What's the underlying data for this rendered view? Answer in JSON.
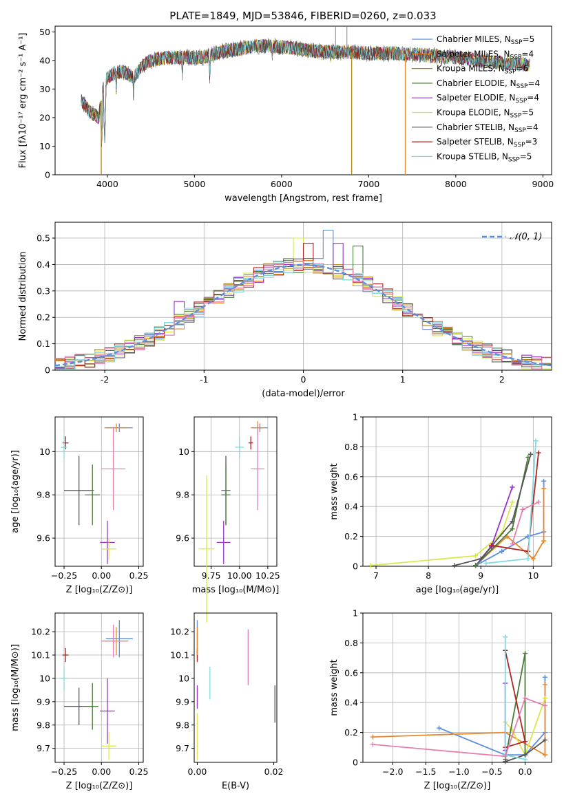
{
  "figure": {
    "title": "PLATE=1849, MJD=53846, FIBERID=0260, z=0.033"
  },
  "colors": {
    "Chabrier MILES": "#5b8ede",
    "Salpeter MILES": "#e8862a",
    "Kroupa MILES": "#b8860b",
    "Chabrier ELODIE": "#4a7a3a",
    "Salpeter ELODIE": "#9932cc",
    "Kroupa ELODIE": "#d8e84a",
    "Chabrier STELIB": "#555555",
    "Salpeter STELIB": "#b22222",
    "Kroupa STELIB": "#7fdbe0",
    "Pink": "#e57fb0"
  },
  "chart_data": [
    {
      "id": "spectrum",
      "type": "line",
      "xlabel": "wavelength [Angstrom, rest frame]",
      "ylabel": "Flux [fλ10⁻¹⁷ erg cm⁻² s⁻¹ A⁻¹]",
      "xlim": [
        3400,
        9100
      ],
      "ylim": [
        0,
        52
      ],
      "xticks": [
        4000,
        5000,
        6000,
        7000,
        8000,
        9000
      ],
      "yticks": [
        0,
        10,
        20,
        30,
        40,
        50
      ],
      "legend_position": "top-right",
      "legend": [
        {
          "label": "Chabrier MILES, N",
          "sub": "SSP",
          "eq": "=5",
          "color_key": "Chabrier MILES"
        },
        {
          "label": "Salpeter MILES, N",
          "sub": "SSP",
          "eq": "=4",
          "color_key": "Salpeter MILES"
        },
        {
          "label": "Kroupa MILES, N",
          "sub": "SSP",
          "eq": "=6",
          "color_key": "Kroupa MILES"
        },
        {
          "label": "Chabrier ELODIE, N",
          "sub": "SSP",
          "eq": "=4",
          "color_key": "Chabrier ELODIE"
        },
        {
          "label": "Salpeter ELODIE, N",
          "sub": "SSP",
          "eq": "=4",
          "color_key": "Salpeter ELODIE"
        },
        {
          "label": "Kroupa ELODIE, N",
          "sub": "SSP",
          "eq": "=5",
          "color_key": "Kroupa ELODIE"
        },
        {
          "label": "Chabrier STELIB, N",
          "sub": "SSP",
          "eq": "=4",
          "color_key": "Chabrier STELIB"
        },
        {
          "label": "Salpeter STELIB, N",
          "sub": "SSP",
          "eq": "=3",
          "color_key": "Salpeter STELIB"
        },
        {
          "label": "Kroupa STELIB, N",
          "sub": "SSP",
          "eq": "=5",
          "color_key": "Kroupa STELIB"
        }
      ],
      "continuum": [
        [
          3700,
          26
        ],
        [
          3800,
          22
        ],
        [
          3900,
          20
        ],
        [
          3950,
          30
        ],
        [
          4000,
          34
        ],
        [
          4100,
          36
        ],
        [
          4200,
          36
        ],
        [
          4300,
          34
        ],
        [
          4400,
          38
        ],
        [
          4500,
          40
        ],
        [
          4700,
          41
        ],
        [
          4900,
          41
        ],
        [
          5100,
          41
        ],
        [
          5300,
          43
        ],
        [
          5500,
          44
        ],
        [
          5700,
          45
        ],
        [
          5900,
          45
        ],
        [
          6100,
          44.5
        ],
        [
          6300,
          43.5
        ],
        [
          6500,
          43
        ],
        [
          6700,
          43
        ],
        [
          7000,
          42.5
        ],
        [
          7300,
          42.5
        ],
        [
          7600,
          42
        ],
        [
          8000,
          41
        ],
        [
          8300,
          40
        ],
        [
          8600,
          39
        ],
        [
          8900,
          38.5
        ]
      ],
      "dips": [
        {
          "x": 3934,
          "min": 9
        },
        {
          "x": 3969,
          "min": 10
        },
        {
          "x": 4102,
          "min": 28
        },
        {
          "x": 4300,
          "min": 26
        },
        {
          "x": 4861,
          "min": 32
        },
        {
          "x": 5175,
          "min": 32
        },
        {
          "x": 5893,
          "min": 38
        },
        {
          "x": 6563,
          "min": 38
        }
      ],
      "spikes": [
        {
          "x": 6620,
          "max": 52
        },
        {
          "x": 6750,
          "max": 52
        }
      ],
      "dropouts": [
        {
          "x": 3930,
          "color_key": "Kroupa MILES"
        },
        {
          "x": 6805,
          "color_key": "Kroupa MILES"
        },
        {
          "x": 7420,
          "color_key": "Salpeter MILES"
        }
      ],
      "model_ends": {
        "Kroupa STELIB": 8850,
        "Chabrier STELIB": 8850,
        "Salpeter STELIB": 8850,
        "Chabrier MILES": 7400,
        "Salpeter MILES": 7400,
        "Kroupa MILES": 7400
      }
    },
    {
      "id": "residuals",
      "type": "histogram",
      "xlabel": "(data-model)/error",
      "ylabel": "Normed distribution",
      "xlim": [
        -2.5,
        2.5
      ],
      "ylim": [
        0,
        0.56
      ],
      "xticks": [
        -2,
        -1,
        0,
        1,
        2
      ],
      "yticks": [
        0.0,
        0.1,
        0.2,
        0.3,
        0.4,
        0.5
      ],
      "grid": true,
      "bin_width": 0.1,
      "legend_position": "top-right",
      "legend": [
        {
          "label": "𝒩(0, 1)",
          "style": "dashed",
          "color_key": "Chabrier MILES"
        }
      ],
      "gaussian": {
        "mean": 0,
        "sigma": 1
      },
      "outliers": [
        {
          "color_key": "Chabrier MILES",
          "x": 0.25,
          "y": 0.53
        },
        {
          "color_key": "Kroupa ELODIE",
          "x": -0.05,
          "y": 0.5
        },
        {
          "color_key": "Chabrier ELODIE",
          "x": 0.55,
          "y": 0.47
        },
        {
          "color_key": "Salpeter STELIB",
          "x": 0.05,
          "y": 0.48
        },
        {
          "color_key": "Salpeter ELODIE",
          "x": -1.25,
          "y": 0.26
        },
        {
          "color_key": "Salpeter ELODIE",
          "x": 0.35,
          "y": 0.48
        }
      ]
    },
    {
      "id": "age_vs_Z",
      "type": "errorbar",
      "xlabel": "Z [log₁₀(Z/Z⊙)]",
      "ylabel": "age  [log₁₀(age/yr)]",
      "xlim": [
        -0.31,
        0.28
      ],
      "ylim": [
        9.47,
        10.16
      ],
      "xticks": [
        -0.25,
        0.0,
        0.25
      ],
      "xticklabels": [
        "−0.25",
        "0.00",
        "0.25"
      ],
      "yticks": [
        9.6,
        9.8,
        10.0
      ],
      "grid": true,
      "points": [
        {
          "color_key": "Chabrier MILES",
          "x": 0.12,
          "y": 10.11,
          "xerr": 0.09,
          "yerr": 0.02
        },
        {
          "color_key": "Salpeter MILES",
          "x": 0.1,
          "y": 10.11,
          "xerr": 0.08,
          "yerr": 0.02
        },
        {
          "color_key": "Salpeter STELIB",
          "x": -0.24,
          "y": 10.04,
          "xerr": 0.02,
          "yerr": 0.03
        },
        {
          "color_key": "Kroupa STELIB",
          "x": -0.25,
          "y": 10.02,
          "xerr": 0.02,
          "yerr": 0.05
        },
        {
          "color_key": "Pink",
          "x": 0.08,
          "y": 9.92,
          "xerr": 0.08,
          "yerr": 0.19
        },
        {
          "color_key": "Chabrier STELIB",
          "x": -0.15,
          "y": 9.82,
          "xerr": 0.1,
          "yerr": 0.16
        },
        {
          "color_key": "Chabrier ELODIE",
          "x": -0.06,
          "y": 9.8,
          "xerr": 0.05,
          "yerr": 0.14
        },
        {
          "color_key": "Salpeter ELODIE",
          "x": 0.04,
          "y": 9.58,
          "xerr": 0.05,
          "yerr": 0.1
        },
        {
          "color_key": "Kroupa ELODIE",
          "x": 0.05,
          "y": 9.55,
          "xerr": 0.05,
          "yerr": 0.05
        }
      ]
    },
    {
      "id": "age_vs_mass",
      "type": "errorbar",
      "xlabel": "mass [log₁₀(M/M⊙)]",
      "xlim": [
        9.6,
        10.33
      ],
      "ylim": [
        9.47,
        10.16
      ],
      "xticks": [
        9.75,
        10.0,
        10.25
      ],
      "xticklabels": [
        "9.75",
        "10.00",
        "10.25"
      ],
      "yticks": [
        9.6,
        9.8,
        10.0
      ],
      "grid": true,
      "points": [
        {
          "color_key": "Chabrier MILES",
          "x": 10.18,
          "y": 10.11,
          "xerr": 0.07,
          "yerr": 0.02
        },
        {
          "color_key": "Salpeter MILES",
          "x": 10.16,
          "y": 10.11,
          "xerr": 0.06,
          "yerr": 0.03
        },
        {
          "color_key": "Salpeter STELIB",
          "x": 10.1,
          "y": 10.04,
          "xerr": 0.02,
          "yerr": 0.03
        },
        {
          "color_key": "Kroupa STELIB",
          "x": 10.0,
          "y": 10.02,
          "xerr": 0.04,
          "yerr": 0.05
        },
        {
          "color_key": "Pink",
          "x": 10.16,
          "y": 9.92,
          "xerr": 0.06,
          "yerr": 0.19
        },
        {
          "color_key": "Chabrier STELIB",
          "x": 9.88,
          "y": 9.82,
          "xerr": 0.04,
          "yerr": 0.16
        },
        {
          "color_key": "Chabrier ELODIE",
          "x": 9.88,
          "y": 9.8,
          "xerr": 0.04,
          "yerr": 0.14
        },
        {
          "color_key": "Salpeter ELODIE",
          "x": 9.86,
          "y": 9.58,
          "xerr": 0.06,
          "yerr": 0.1
        },
        {
          "color_key": "Kroupa ELODIE",
          "x": 9.71,
          "y": 9.55,
          "xerr": 0.07,
          "yerr": 0.34
        }
      ]
    },
    {
      "id": "mass_weight_vs_age",
      "type": "line",
      "xlabel": "age  [log₁₀(age/yr)]",
      "ylabel": "mass weight",
      "xlim": [
        6.75,
        10.35
      ],
      "ylim": [
        0,
        1.0
      ],
      "xticks": [
        7,
        8,
        9,
        10
      ],
      "yticks": [
        0.0,
        0.2,
        0.4,
        0.6,
        0.8,
        1.0
      ],
      "grid": true,
      "series": [
        {
          "color_key": "Chabrier MILES",
          "x": [
            8.9,
            9.4,
            9.9,
            10.2,
            10.2
          ],
          "y": [
            0.005,
            0.1,
            0.2,
            0.23,
            0.57
          ]
        },
        {
          "color_key": "Salpeter MILES",
          "x": [
            8.9,
            9.5,
            10.0,
            10.2,
            10.2
          ],
          "y": [
            0.005,
            0.2,
            0.05,
            0.17,
            0.52
          ]
        },
        {
          "color_key": "Kroupa ELODIE",
          "x": [
            6.9,
            8.9,
            9.4,
            9.6
          ],
          "y": [
            0.005,
            0.07,
            0.22,
            0.43
          ]
        },
        {
          "color_key": "Salpeter ELODIE",
          "x": [
            8.9,
            9.2,
            9.6
          ],
          "y": [
            0.005,
            0.13,
            0.53
          ]
        },
        {
          "color_key": "Chabrier ELODIE",
          "x": [
            8.9,
            9.6,
            9.9
          ],
          "y": [
            0.005,
            0.25,
            0.73
          ]
        },
        {
          "color_key": "Chabrier STELIB",
          "x": [
            8.5,
            9.0,
            9.6,
            9.95
          ],
          "y": [
            0.005,
            0.05,
            0.3,
            0.75
          ]
        },
        {
          "color_key": "Salpeter STELIB",
          "x": [
            9.2,
            9.9,
            10.1
          ],
          "y": [
            0.14,
            0.1,
            0.76
          ]
        },
        {
          "color_key": "Kroupa STELIB",
          "x": [
            9.1,
            9.9,
            10.05
          ],
          "y": [
            0.02,
            0.05,
            0.84
          ]
        },
        {
          "color_key": "Pink",
          "x": [
            9.6,
            9.8,
            10.1
          ],
          "y": [
            0.15,
            0.38,
            0.43
          ]
        }
      ]
    },
    {
      "id": "mass_vs_Z",
      "type": "errorbar",
      "xlabel": "Z [log₁₀(Z/Z⊙)]",
      "ylabel": "mass [log₁₀(M/M⊙)]",
      "xlim": [
        -0.31,
        0.28
      ],
      "ylim": [
        9.64,
        10.28
      ],
      "xticks": [
        -0.25,
        0.0,
        0.25
      ],
      "xticklabels": [
        "−0.25",
        "0.00",
        "0.25"
      ],
      "yticks": [
        9.7,
        9.8,
        9.9,
        10.0,
        10.1,
        10.2
      ],
      "grid": true,
      "points": [
        {
          "color_key": "Chabrier MILES",
          "x": 0.12,
          "y": 10.17,
          "xerr": 0.09,
          "yerr": 0.08
        },
        {
          "color_key": "Salpeter MILES",
          "x": 0.1,
          "y": 10.16,
          "xerr": 0.08,
          "yerr": 0.06
        },
        {
          "color_key": "Salpeter STELIB",
          "x": -0.24,
          "y": 10.1,
          "xerr": 0.02,
          "yerr": 0.03
        },
        {
          "color_key": "Kroupa STELIB",
          "x": -0.25,
          "y": 10.0,
          "xerr": 0.03,
          "yerr": 0.05
        },
        {
          "color_key": "Pink",
          "x": 0.08,
          "y": 10.16,
          "xerr": 0.08,
          "yerr": 0.07
        },
        {
          "color_key": "Chabrier STELIB",
          "x": -0.15,
          "y": 9.88,
          "xerr": 0.1,
          "yerr": 0.08
        },
        {
          "color_key": "Chabrier ELODIE",
          "x": -0.06,
          "y": 9.88,
          "xerr": 0.04,
          "yerr": 0.1
        },
        {
          "color_key": "Salpeter ELODIE",
          "x": 0.04,
          "y": 9.86,
          "xerr": 0.05,
          "yerr": 0.14
        },
        {
          "color_key": "Kroupa ELODIE",
          "x": 0.05,
          "y": 9.71,
          "xerr": 0.05,
          "yerr": 0.06
        }
      ]
    },
    {
      "id": "mass_vs_ebv",
      "type": "errorbar",
      "xlabel": "E(B-V)",
      "xlim": [
        -0.0008,
        0.0208
      ],
      "ylim": [
        9.64,
        10.28
      ],
      "xticks": [
        0.0,
        0.02
      ],
      "xticklabels": [
        "0.00",
        "0.02"
      ],
      "yticks": [
        9.7,
        9.8,
        9.9,
        10.0,
        10.1,
        10.2
      ],
      "grid": false,
      "points": [
        {
          "color_key": "Chabrier MILES",
          "x": 0.0,
          "y": 10.17,
          "xerr": 0,
          "yerr": 0.08
        },
        {
          "color_key": "Salpeter STELIB",
          "x": 0.0,
          "y": 10.1,
          "xerr": 0,
          "yerr": 0.03
        },
        {
          "color_key": "Salpeter MILES",
          "x": 0.0,
          "y": 10.16,
          "xerr": 0,
          "yerr": 0.06
        },
        {
          "color_key": "Salpeter ELODIE",
          "x": 0.0,
          "y": 9.92,
          "xerr": 0,
          "yerr": 0.05
        },
        {
          "color_key": "Kroupa ELODIE",
          "x": 0.0,
          "y": 9.75,
          "xerr": 0,
          "yerr": 0.1
        },
        {
          "color_key": "Kroupa STELIB",
          "x": 0.0033,
          "y": 9.98,
          "xerr": 0,
          "yerr": 0.07
        },
        {
          "color_key": "Pink",
          "x": 0.0133,
          "y": 10.09,
          "xerr": 0,
          "yerr": 0.12
        },
        {
          "color_key": "Chabrier STELIB",
          "x": 0.0203,
          "y": 9.89,
          "xerr": 0,
          "yerr": 0.08
        }
      ]
    },
    {
      "id": "mass_weight_vs_Z",
      "type": "line",
      "xlabel": "Z [log₁₀(Z/Z⊙)]",
      "ylabel": "mass weight",
      "xlim": [
        -2.45,
        0.4
      ],
      "ylim": [
        0,
        1.0
      ],
      "xticks": [
        -2.0,
        -1.5,
        -1.0,
        -0.5,
        0.0
      ],
      "xticklabels": [
        "−2.0",
        "−1.5",
        "−1.0",
        "−0.5",
        "0.0"
      ],
      "yticks": [
        0.0,
        0.2,
        0.4,
        0.6,
        0.8,
        1.0
      ],
      "grid": true,
      "series": [
        {
          "color_key": "Chabrier MILES",
          "x": [
            -1.3,
            -0.3,
            0.0,
            0.3,
            0.3
          ],
          "y": [
            0.23,
            0.05,
            0.05,
            0.2,
            0.57
          ]
        },
        {
          "color_key": "Salpeter MILES",
          "x": [
            -2.3,
            -0.3,
            0.3,
            0.3,
            0.3
          ],
          "y": [
            0.17,
            0.2,
            0.05,
            0.05,
            0.52
          ]
        },
        {
          "color_key": "Kroupa ELODIE",
          "x": [
            -0.3,
            -0.2,
            0.0,
            0.3
          ],
          "y": [
            0.27,
            0.22,
            0.05,
            0.43
          ]
        },
        {
          "color_key": "Salpeter ELODIE",
          "x": [
            -0.3,
            -0.3
          ],
          "y": [
            0.08,
            0.53
          ]
        },
        {
          "color_key": "Chabrier ELODIE",
          "x": [
            -0.3,
            0.0,
            0.0
          ],
          "y": [
            0.02,
            0.73,
            0.05
          ]
        },
        {
          "color_key": "Chabrier STELIB",
          "x": [
            -0.3,
            0.0,
            0.3
          ],
          "y": [
            0.005,
            0.05,
            0.15
          ]
        },
        {
          "color_key": "Salpeter STELIB",
          "x": [
            -0.3,
            0.0,
            -0.3
          ],
          "y": [
            0.1,
            0.14,
            0.75
          ]
        },
        {
          "color_key": "Kroupa STELIB",
          "x": [
            -0.3,
            -0.3,
            0.0
          ],
          "y": [
            0.84,
            0.05,
            0.02
          ]
        },
        {
          "color_key": "Pink",
          "x": [
            -2.3,
            -0.3,
            0.0,
            0.3
          ],
          "y": [
            0.12,
            0.04,
            0.43,
            0.38
          ]
        }
      ]
    }
  ]
}
